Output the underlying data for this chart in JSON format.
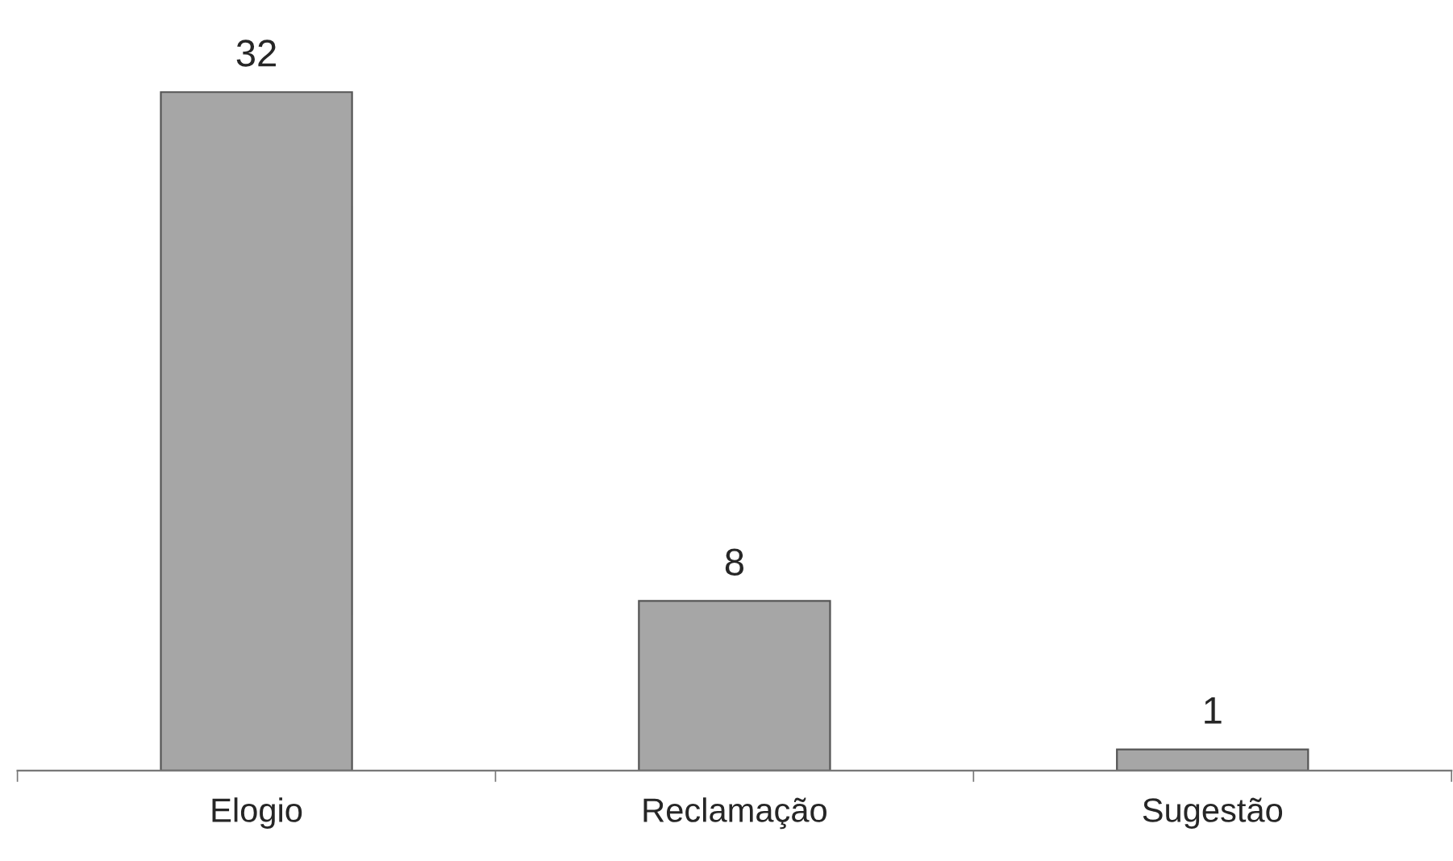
{
  "chart_data": {
    "type": "bar",
    "categories": [
      "Elogio",
      "Reclamação",
      "Sugestão"
    ],
    "values": [
      32,
      8,
      1
    ],
    "color": "#a6a6a6",
    "data_labels": true,
    "grid": false,
    "legend": false
  }
}
